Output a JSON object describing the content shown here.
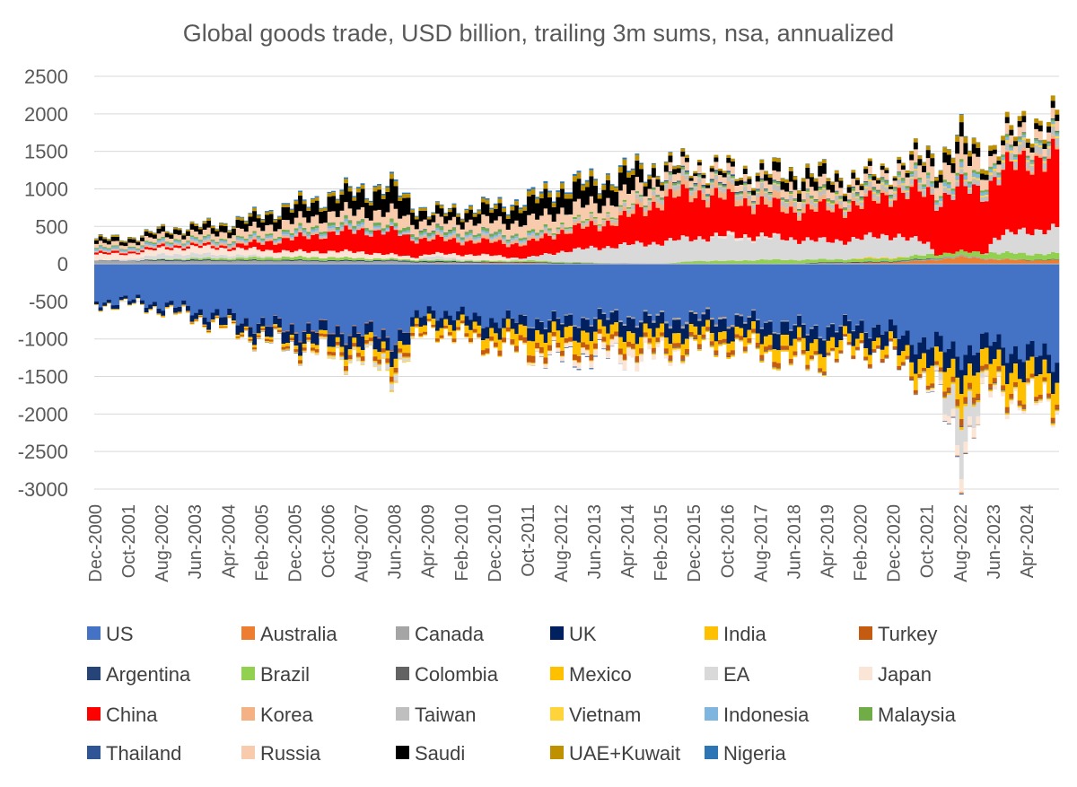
{
  "chart_data": {
    "type": "area",
    "stacked": true,
    "diverging": true,
    "title": "Global goods trade, USD billion, trailing 3m sums, nsa, annualized",
    "xlabel": "",
    "ylabel": "",
    "ylim": [
      -3000,
      2500
    ],
    "yticks": [
      2500,
      2000,
      1500,
      1000,
      500,
      0,
      -500,
      -1000,
      -1500,
      -2000,
      -2500,
      -3000
    ],
    "ytick_labels": [
      "2500",
      "2000",
      "1500",
      "1000",
      "500",
      "0",
      "-500",
      "-1000",
      "-1500",
      "-2000",
      "-2500",
      "-3000"
    ],
    "x_tick_labels": [
      "Dec-2000",
      "Oct-2001",
      "Aug-2002",
      "Jun-2003",
      "Apr-2004",
      "Feb-2005",
      "Dec-2005",
      "Oct-2006",
      "Aug-2007",
      "Jun-2008",
      "Apr-2009",
      "Feb-2010",
      "Dec-2010",
      "Oct-2011",
      "Aug-2012",
      "Jun-2013",
      "Apr-2014",
      "Feb-2015",
      "Dec-2015",
      "Oct-2016",
      "Aug-2017",
      "Jun-2018",
      "Apr-2019",
      "Feb-2020",
      "Dec-2020",
      "Oct-2021",
      "Aug-2022",
      "Jun-2023",
      "Apr-2024"
    ],
    "grid": true,
    "legend_position": "bottom",
    "x": [
      "Dec-2000",
      "Oct-2001",
      "Aug-2002",
      "Jun-2003",
      "Apr-2004",
      "Feb-2005",
      "Dec-2005",
      "Oct-2006",
      "Aug-2007",
      "Jun-2008",
      "Apr-2009",
      "Feb-2010",
      "Dec-2010",
      "Oct-2011",
      "Aug-2012",
      "Jun-2013",
      "Apr-2014",
      "Feb-2015",
      "Dec-2015",
      "Oct-2016",
      "Aug-2017",
      "Jun-2018",
      "Apr-2019",
      "Feb-2020",
      "Dec-2020",
      "Oct-2021",
      "Aug-2022",
      "Jun-2023",
      "Apr-2024"
    ],
    "series": [
      {
        "name": "US",
        "color": "#4472C4",
        "values": [
          -500,
          -480,
          -540,
          -620,
          -720,
          -800,
          -860,
          -880,
          -900,
          -980,
          -620,
          -700,
          -760,
          -740,
          -760,
          -700,
          -700,
          -740,
          -700,
          -720,
          -760,
          -840,
          -860,
          -800,
          -920,
          -1060,
          -1180,
          -1040,
          -1220
        ]
      },
      {
        "name": "Australia",
        "color": "#ED7D31",
        "values": [
          0,
          0,
          0,
          0,
          0,
          -5,
          -10,
          -10,
          -10,
          -10,
          10,
          10,
          15,
          15,
          5,
          5,
          0,
          0,
          -5,
          -5,
          0,
          5,
          10,
          15,
          25,
          45,
          90,
          60,
          50
        ]
      },
      {
        "name": "Canada",
        "color": "#A5A5A5",
        "values": [
          40,
          40,
          40,
          40,
          40,
          40,
          40,
          35,
          35,
          35,
          10,
          10,
          0,
          -10,
          -15,
          -15,
          -20,
          -25,
          -20,
          -20,
          -15,
          -15,
          -15,
          -10,
          0,
          15,
          20,
          10,
          0
        ]
      },
      {
        "name": "UK",
        "color": "#002060",
        "values": [
          -40,
          -50,
          -60,
          -80,
          -110,
          -130,
          -150,
          -160,
          -170,
          -170,
          -110,
          -130,
          -140,
          -150,
          -170,
          -170,
          -190,
          -180,
          -180,
          -170,
          -180,
          -190,
          -190,
          -180,
          -200,
          -230,
          -270,
          -230,
          -250
        ]
      },
      {
        "name": "India",
        "color": "#FFC000",
        "values": [
          0,
          0,
          -5,
          -10,
          -20,
          -30,
          -45,
          -60,
          -80,
          -110,
          -80,
          -100,
          -120,
          -170,
          -170,
          -150,
          -140,
          -140,
          -120,
          -100,
          -130,
          -170,
          -160,
          -100,
          -120,
          -220,
          -280,
          -250,
          -270
        ]
      },
      {
        "name": "Turkey",
        "color": "#C55A11",
        "values": [
          0,
          0,
          -5,
          -10,
          -15,
          -25,
          -35,
          -45,
          -55,
          -60,
          -30,
          -45,
          -60,
          -80,
          -65,
          -70,
          -65,
          -55,
          -50,
          -50,
          -60,
          -55,
          -30,
          -40,
          -40,
          -40,
          -80,
          -60,
          -50
        ]
      },
      {
        "name": "Argentina",
        "color": "#264478",
        "values": [
          5,
          5,
          15,
          15,
          12,
          12,
          12,
          12,
          12,
          12,
          15,
          12,
          10,
          10,
          8,
          5,
          5,
          0,
          -5,
          0,
          -5,
          0,
          10,
          10,
          10,
          8,
          0,
          -5,
          5
        ]
      },
      {
        "name": "Brazil",
        "color": "#92D050",
        "values": [
          0,
          0,
          10,
          20,
          25,
          35,
          40,
          40,
          30,
          20,
          20,
          15,
          15,
          20,
          15,
          5,
          0,
          0,
          40,
          40,
          55,
          50,
          40,
          40,
          40,
          55,
          50,
          80,
          80
        ]
      },
      {
        "name": "Colombia",
        "color": "#636363",
        "values": [
          0,
          0,
          0,
          0,
          0,
          0,
          0,
          0,
          0,
          0,
          0,
          0,
          0,
          0,
          0,
          0,
          -5,
          -10,
          -10,
          -5,
          -5,
          -5,
          -10,
          -5,
          -10,
          -10,
          -10,
          -10,
          -10
        ]
      },
      {
        "name": "Mexico",
        "color": "#FFC000",
        "values": [
          -10,
          -10,
          -10,
          -10,
          -10,
          -10,
          -10,
          -15,
          -15,
          -20,
          -5,
          -5,
          -5,
          -10,
          -10,
          -10,
          -10,
          -20,
          -20,
          -20,
          -20,
          -20,
          -10,
          10,
          10,
          -10,
          -30,
          -20,
          -20
        ]
      },
      {
        "name": "EA",
        "color": "#D9D9D9",
        "values": [
          0,
          20,
          60,
          60,
          40,
          20,
          0,
          -20,
          -30,
          -80,
          50,
          20,
          0,
          40,
          140,
          200,
          250,
          290,
          310,
          300,
          290,
          280,
          240,
          270,
          300,
          150,
          -550,
          200,
          320
        ]
      },
      {
        "name": "Japan",
        "color": "#FBE5D6",
        "values": [
          80,
          70,
          80,
          90,
          90,
          80,
          70,
          80,
          80,
          50,
          30,
          60,
          70,
          -20,
          -60,
          -80,
          -110,
          -50,
          0,
          40,
          30,
          -10,
          -10,
          -10,
          10,
          -20,
          -140,
          -60,
          -30
        ]
      },
      {
        "name": "China",
        "color": "#FF0000",
        "values": [
          25,
          25,
          30,
          30,
          30,
          100,
          180,
          240,
          290,
          300,
          200,
          180,
          180,
          190,
          270,
          290,
          380,
          560,
          600,
          480,
          430,
          380,
          440,
          440,
          560,
          680,
          840,
          810,
          960
        ]
      },
      {
        "name": "Korea",
        "color": "#F4B183",
        "values": [
          10,
          10,
          15,
          20,
          25,
          25,
          20,
          15,
          10,
          -10,
          30,
          35,
          35,
          30,
          30,
          40,
          50,
          90,
          100,
          90,
          90,
          80,
          50,
          40,
          40,
          15,
          -20,
          0,
          40
        ]
      },
      {
        "name": "Taiwan",
        "color": "#BFBFBF",
        "values": [
          15,
          15,
          20,
          20,
          20,
          20,
          25,
          30,
          35,
          25,
          20,
          30,
          30,
          30,
          40,
          40,
          50,
          60,
          60,
          60,
          70,
          70,
          60,
          60,
          70,
          80,
          60,
          80,
          100
        ]
      },
      {
        "name": "Vietnam",
        "color": "#FFD43B",
        "values": [
          0,
          0,
          0,
          0,
          -5,
          -5,
          -5,
          -10,
          -10,
          -15,
          -10,
          -10,
          -10,
          -5,
          0,
          5,
          5,
          5,
          5,
          10,
          10,
          10,
          15,
          20,
          25,
          10,
          15,
          30,
          25
        ]
      },
      {
        "name": "Indonesia",
        "color": "#7EB6E0",
        "values": [
          25,
          25,
          25,
          25,
          25,
          25,
          30,
          30,
          30,
          20,
          25,
          25,
          25,
          25,
          0,
          -5,
          5,
          10,
          10,
          10,
          10,
          0,
          0,
          15,
          25,
          40,
          60,
          40,
          30
        ]
      },
      {
        "name": "Malaysia",
        "color": "#70AD47",
        "values": [
          15,
          15,
          20,
          20,
          20,
          25,
          30,
          35,
          35,
          40,
          35,
          35,
          30,
          30,
          25,
          20,
          20,
          25,
          25,
          20,
          20,
          25,
          30,
          30,
          35,
          35,
          35,
          30,
          25
        ]
      },
      {
        "name": "Thailand",
        "color": "#2F5597",
        "values": [
          0,
          0,
          0,
          0,
          0,
          -5,
          -5,
          5,
          5,
          0,
          10,
          5,
          5,
          0,
          -10,
          -10,
          0,
          10,
          20,
          20,
          15,
          10,
          10,
          15,
          10,
          -5,
          -10,
          5,
          10
        ]
      },
      {
        "name": "Russia",
        "color": "#F8CBAD",
        "values": [
          50,
          50,
          60,
          70,
          90,
          110,
          130,
          140,
          150,
          170,
          110,
          130,
          150,
          180,
          190,
          180,
          180,
          110,
          100,
          90,
          100,
          120,
          120,
          90,
          90,
          180,
          250,
          120,
          120
        ]
      },
      {
        "name": "Saudi",
        "color": "#000000",
        "values": [
          50,
          50,
          60,
          70,
          90,
          130,
          170,
          190,
          230,
          280,
          90,
          120,
          150,
          220,
          240,
          230,
          220,
          90,
          40,
          60,
          80,
          140,
          120,
          60,
          40,
          100,
          160,
          60,
          80
        ]
      },
      {
        "name": "UAE+Kuwait",
        "color": "#BF9000",
        "values": [
          20,
          20,
          20,
          25,
          30,
          35,
          40,
          45,
          50,
          60,
          30,
          40,
          50,
          60,
          70,
          70,
          70,
          40,
          30,
          30,
          40,
          50,
          40,
          30,
          30,
          50,
          80,
          60,
          60
        ]
      },
      {
        "name": "Nigeria",
        "color": "#2E75B6",
        "values": [
          5,
          5,
          5,
          5,
          10,
          15,
          15,
          15,
          20,
          20,
          10,
          15,
          20,
          25,
          25,
          20,
          20,
          10,
          0,
          0,
          5,
          5,
          5,
          0,
          0,
          5,
          10,
          0,
          0
        ]
      }
    ]
  }
}
